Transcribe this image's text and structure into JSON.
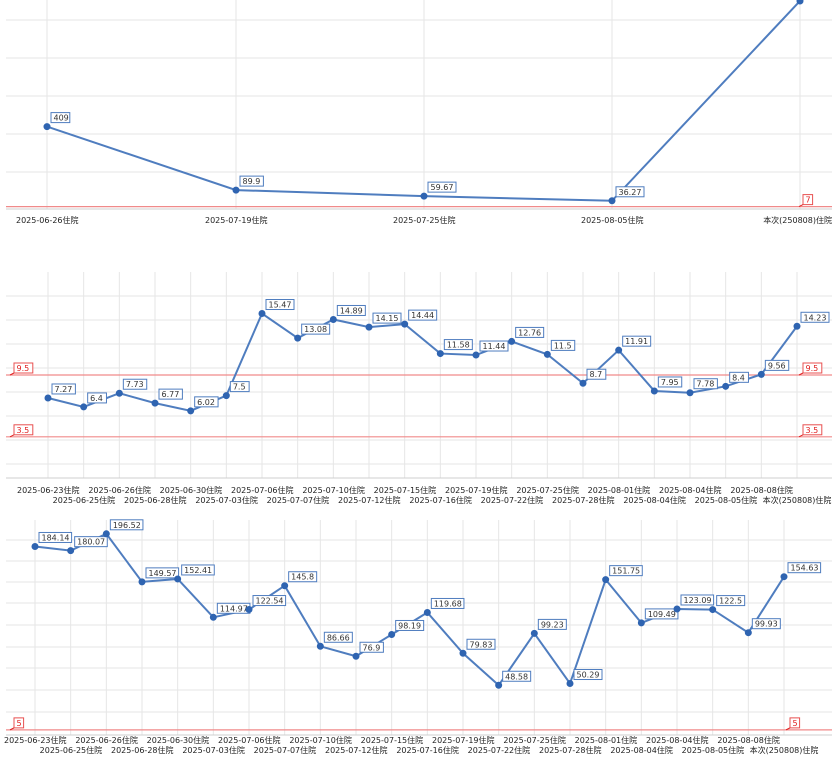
{
  "chart_data": [
    {
      "type": "line",
      "categories": [
        "2025-06-26住院",
        "2025-07-19住院",
        "2025-07-25住院",
        "2025-08-05住院",
        "本次(250808)住院"
      ],
      "series": [
        {
          "values": [
            409,
            89.9,
            59.67,
            36.27,
            1040
          ],
          "labels": [
            "409",
            "89.9",
            "59.67",
            "36.27",
            ""
          ]
        }
      ],
      "reference_lines": [
        {
          "value": 7,
          "label": "7",
          "color": "#e02020"
        }
      ],
      "ylim": [
        -5,
        1045
      ],
      "grid": true
    },
    {
      "type": "line",
      "categories": [
        "2025-06-23住院",
        "2025-06-25住院",
        "2025-06-26住院",
        "2025-06-28住院",
        "2025-06-30住院",
        "2025-07-03住院",
        "2025-07-06住院",
        "2025-07-07住院",
        "2025-07-10住院",
        "2025-07-12住院",
        "2025-07-15住院",
        "2025-07-16住院",
        "2025-07-19住院",
        "2025-07-22住院",
        "2025-07-25住院",
        "2025-07-28住院",
        "2025-08-01住院",
        "2025-08-04住院",
        "2025-08-04住院",
        "2025-08-05住院",
        "2025-08-08住院",
        "本次(250808)住院"
      ],
      "series": [
        {
          "values": [
            7.27,
            6.4,
            7.73,
            6.77,
            6.02,
            7.5,
            15.47,
            13.08,
            14.89,
            14.15,
            14.44,
            11.58,
            11.44,
            12.76,
            11.5,
            8.7,
            11.91,
            7.95,
            7.78,
            8.4,
            9.56,
            14.23
          ]
        }
      ],
      "reference_lines": [
        {
          "value": 9.5,
          "label": "9.5",
          "color": "#e02020"
        },
        {
          "value": 3.5,
          "label": "3.5",
          "color": "#e02020"
        }
      ],
      "ylim": [
        -0.5,
        19.5
      ],
      "grid": true
    },
    {
      "type": "line",
      "categories": [
        "2025-06-23住院",
        "2025-06-25住院",
        "2025-06-26住院",
        "2025-06-28住院",
        "2025-06-30住院",
        "2025-07-03住院",
        "2025-07-06住院",
        "2025-07-07住院",
        "2025-07-10住院",
        "2025-07-12住院",
        "2025-07-15住院",
        "2025-07-16住院",
        "2025-07-19住院",
        "2025-07-22住院",
        "2025-07-25住院",
        "2025-07-28住院",
        "2025-08-01住院",
        "2025-08-04住院",
        "2025-08-04住院",
        "2025-08-05住院",
        "2025-08-08住院",
        "本次(250808)住院"
      ],
      "series": [
        {
          "values": [
            184.14,
            180.07,
            196.52,
            149.57,
            152.41,
            114.97,
            122.54,
            145.8,
            86.66,
            76.9,
            98.19,
            119.68,
            79.83,
            48.58,
            99.23,
            50.29,
            151.75,
            109.49,
            123.09,
            122.5,
            99.93,
            154.63
          ]
        }
      ],
      "reference_lines": [
        {
          "value": 5,
          "label": "5",
          "color": "#e02020"
        }
      ],
      "ylim": [
        0,
        210
      ],
      "grid": true
    }
  ]
}
